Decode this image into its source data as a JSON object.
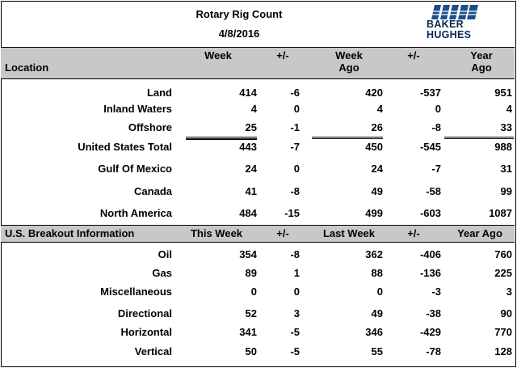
{
  "header": {
    "title": "Rotary Rig Count",
    "date": "4/8/2016",
    "logo_line1": "BAKER",
    "logo_line2": "HUGHES"
  },
  "section1": {
    "col_location": "Location",
    "col_week": "Week",
    "col_pm1": "+/-",
    "col_weekago_1": "Week",
    "col_weekago_2": "Ago",
    "col_pm2": "+/-",
    "col_yearago_1": "Year",
    "col_yearago_2": "Ago",
    "rows": [
      {
        "label": "Land",
        "week": "414",
        "pm1": "-6",
        "weekago": "420",
        "pm2": "-537",
        "yearago": "951"
      },
      {
        "label": "Inland Waters",
        "week": "4",
        "pm1": "0",
        "weekago": "4",
        "pm2": "0",
        "yearago": "4"
      },
      {
        "label": "Offshore",
        "week": "25",
        "pm1": "-1",
        "weekago": "26",
        "pm2": "-8",
        "yearago": "33"
      },
      {
        "label": "United States Total",
        "week": "443",
        "pm1": "-7",
        "weekago": "450",
        "pm2": "-545",
        "yearago": "988"
      },
      {
        "label": "Gulf Of Mexico",
        "week": "24",
        "pm1": "0",
        "weekago": "24",
        "pm2": "-7",
        "yearago": "31"
      },
      {
        "label": "Canada",
        "week": "41",
        "pm1": "-8",
        "weekago": "49",
        "pm2": "-58",
        "yearago": "99"
      },
      {
        "label": "North America",
        "week": "484",
        "pm1": "-15",
        "weekago": "499",
        "pm2": "-603",
        "yearago": "1087"
      }
    ]
  },
  "section2": {
    "col_label": "U.S. Breakout Information",
    "col_thisweek": "This Week",
    "col_pm1": "+/-",
    "col_lastweek": "Last Week",
    "col_pm2": "+/-",
    "col_yearago": "Year Ago",
    "rows": [
      {
        "label": "Oil",
        "week": "354",
        "pm1": "-8",
        "weekago": "362",
        "pm2": "-406",
        "yearago": "760"
      },
      {
        "label": "Gas",
        "week": "89",
        "pm1": "1",
        "weekago": "88",
        "pm2": "-136",
        "yearago": "225"
      },
      {
        "label": "Miscellaneous",
        "week": "0",
        "pm1": "0",
        "weekago": "0",
        "pm2": "-3",
        "yearago": "3"
      },
      {
        "label": "Directional",
        "week": "52",
        "pm1": "3",
        "weekago": "49",
        "pm2": "-38",
        "yearago": "90"
      },
      {
        "label": "Horizontal",
        "week": "341",
        "pm1": "-5",
        "weekago": "346",
        "pm2": "-429",
        "yearago": "770"
      },
      {
        "label": "Vertical",
        "week": "50",
        "pm1": "-5",
        "weekago": "55",
        "pm2": "-78",
        "yearago": "128"
      }
    ]
  }
}
